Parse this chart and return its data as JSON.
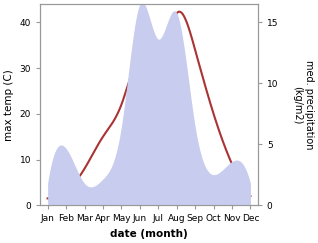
{
  "months": [
    "Jan",
    "Feb",
    "Mar",
    "Apr",
    "May",
    "Jun",
    "Jul",
    "Aug",
    "Sep",
    "Oct",
    "Nov",
    "Dec"
  ],
  "temperature": [
    1.5,
    3,
    8,
    15,
    22,
    32,
    30,
    42,
    34,
    20,
    9,
    2
  ],
  "precipitation": [
    5,
    13,
    5,
    6,
    18,
    46,
    38,
    44,
    18,
    7,
    10,
    5
  ],
  "temp_color": "#aa3333",
  "precip_fill_color": "#c8ccee",
  "ylabel_left": "max temp (C)",
  "ylabel_right": "med. precipitation\n(kg/m2)",
  "xlabel": "date (month)",
  "ylim_left": [
    0,
    44
  ],
  "ylim_right": [
    0,
    16.5
  ],
  "precip_ylim_display": [
    0,
    16.5
  ],
  "background_color": "#ffffff",
  "title_fontsize": 8,
  "tick_fontsize": 6.5,
  "label_fontsize": 7.5
}
